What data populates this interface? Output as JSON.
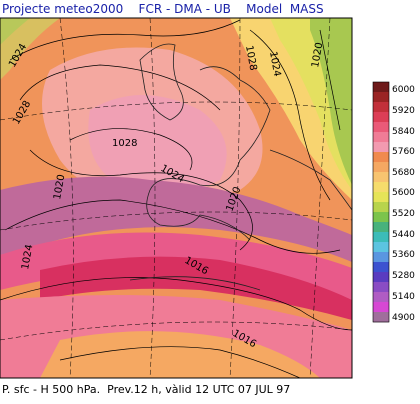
{
  "header": {
    "title": "Projecte meteo2000    FCR - DMA - UB    Model  MASS"
  },
  "caption": "P. sfc - H 500 hPa.  Prev.12 h, vàlid 12 UTC 07 JUL 97",
  "legend": {
    "labels": [
      "6000",
      "5920",
      "5840",
      "5760",
      "5680",
      "5600",
      "5520",
      "5440",
      "5360",
      "5280",
      "5140",
      "4900"
    ],
    "swatches": [
      "#6e1a1a",
      "#9a2424",
      "#c2303a",
      "#dc3e56",
      "#ea5a78",
      "#f07c96",
      "#f29ab0",
      "#f08a4e",
      "#f5a862",
      "#f8c470",
      "#f6dc6c",
      "#e6e458",
      "#b8d44c",
      "#7cc44c",
      "#48b27c",
      "#3cbcb8",
      "#5cc4e0",
      "#5a96e0",
      "#3c52d0",
      "#5a3cc0",
      "#8a4cc4",
      "#b05cc4",
      "#d648d4",
      "#a06e9c"
    ]
  },
  "map": {
    "contour_labels": [
      "1024",
      "1028",
      "1028",
      "1024",
      "1020",
      "1028",
      "1024",
      "1020",
      "1024",
      "1020",
      "1016",
      "1016"
    ]
  }
}
